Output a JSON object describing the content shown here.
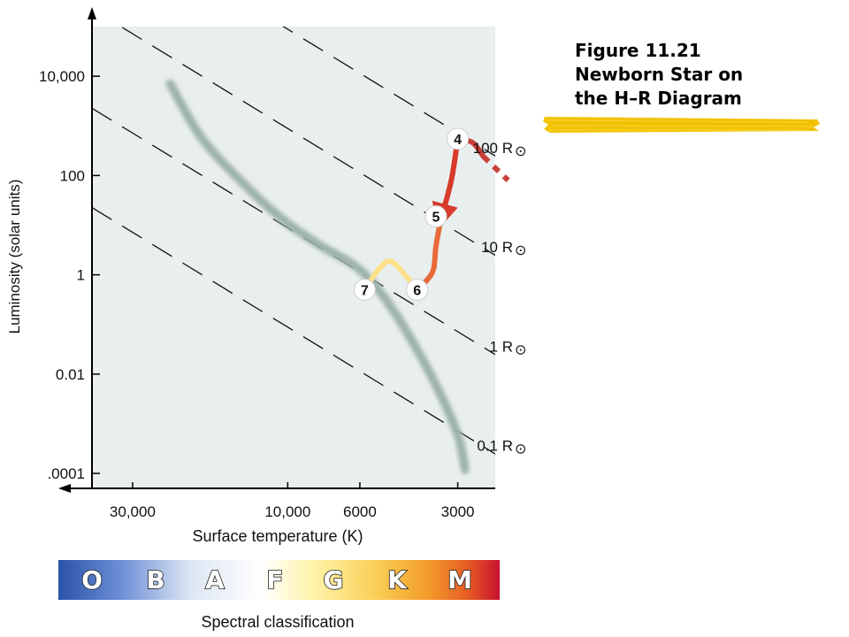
{
  "figure": {
    "caption_lines": [
      "Figure 11.21",
      "Newborn Star on",
      "the H–R Diagram"
    ],
    "highlight_color": "#f2c200"
  },
  "chart_data": {
    "type": "line",
    "title": "",
    "xlabel": "Surface temperature (K)",
    "ylabel": "Luminosity (solar units)",
    "x_scale": "log-reversed",
    "y_scale": "log",
    "xlim": [
      40000,
      2300
    ],
    "ylim": [
      5e-05,
      100000
    ],
    "grid": false,
    "background": "#e9efee",
    "x_ticks": [
      {
        "value": 30000,
        "label": "30,000"
      },
      {
        "value": 10000,
        "label": "10,000"
      },
      {
        "value": 6000,
        "label": "6000"
      },
      {
        "value": 3000,
        "label": "3000"
      }
    ],
    "y_ticks": [
      {
        "value": 10000,
        "label": "10,000"
      },
      {
        "value": 100,
        "label": "100"
      },
      {
        "value": 1,
        "label": "1"
      },
      {
        "value": 0.01,
        "label": "0.01"
      },
      {
        "value": 0.0001,
        "label": ".0001"
      }
    ],
    "radius_lines": [
      {
        "label": "100 R",
        "radius_solar": 100
      },
      {
        "label": "10 R",
        "radius_solar": 10
      },
      {
        "label": "1 R",
        "radius_solar": 1
      },
      {
        "label": "0.1 R",
        "radius_solar": 0.1
      }
    ],
    "sun_symbol": "⊙",
    "series": [
      {
        "role": "main-sequence",
        "color": "#9db2ab",
        "points": [
          {
            "x": 23000,
            "y": 7000
          },
          {
            "x": 18500,
            "y": 600
          },
          {
            "x": 14000,
            "y": 80
          },
          {
            "x": 10500,
            "y": 14
          },
          {
            "x": 8000,
            "y": 4
          },
          {
            "x": 6200,
            "y": 1.5
          },
          {
            "x": 5200,
            "y": 0.45
          },
          {
            "x": 4300,
            "y": 0.07
          },
          {
            "x": 3500,
            "y": 0.006
          },
          {
            "x": 3000,
            "y": 0.0006
          },
          {
            "x": 2850,
            "y": 0.00012
          }
        ]
      },
      {
        "role": "track-4-5-6",
        "color": "#d83a2c",
        "points": [
          {
            "x": 3000,
            "y": 550
          },
          {
            "x": 3140,
            "y": 80
          },
          {
            "x": 3380,
            "y": 13
          },
          {
            "x": 3500,
            "y": 3.8
          },
          {
            "x": 3560,
            "y": 1.3
          },
          {
            "x": 3750,
            "y": 0.75
          },
          {
            "x": 4000,
            "y": 0.5
          }
        ]
      },
      {
        "role": "track-4-incoming",
        "color": "#c9403a",
        "points": [
          {
            "x": 3000,
            "y": 550
          },
          {
            "x": 2700,
            "y": 460
          },
          {
            "x": 2500,
            "y": 240
          }
        ],
        "dashed_tail": [
          {
            "x": 2500,
            "y": 240
          },
          {
            "x": 2100,
            "y": 80
          }
        ]
      },
      {
        "role": "track-6-7",
        "color": "#fde08a",
        "points": [
          {
            "x": 4000,
            "y": 0.5
          },
          {
            "x": 4300,
            "y": 0.9
          },
          {
            "x": 4800,
            "y": 1.85
          },
          {
            "x": 5200,
            "y": 1.4
          },
          {
            "x": 5800,
            "y": 0.5
          }
        ]
      }
    ],
    "stages": [
      {
        "label": "4",
        "x": 3000,
        "y": 550
      },
      {
        "label": "5",
        "x": 3500,
        "y": 15
      },
      {
        "label": "6",
        "x": 4000,
        "y": 0.5
      },
      {
        "label": "7",
        "x": 5800,
        "y": 0.5
      }
    ],
    "spectral": {
      "title": "Spectral classification",
      "classes": [
        "O",
        "B",
        "A",
        "F",
        "G",
        "K",
        "M"
      ]
    }
  }
}
